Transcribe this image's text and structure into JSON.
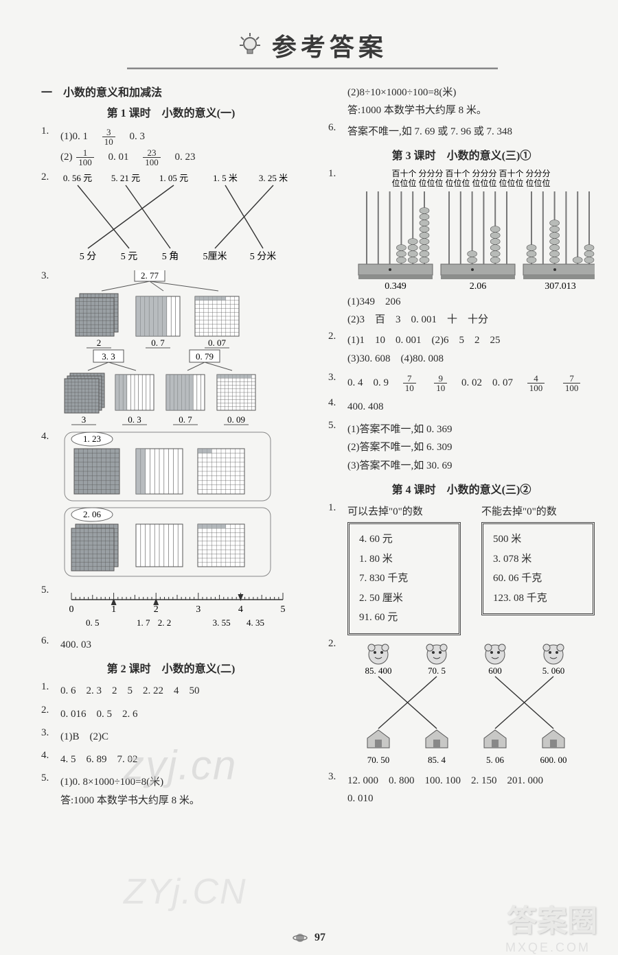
{
  "title": "参考答案",
  "page_number": "97",
  "watermarks": {
    "wm1": "zyj.cn",
    "wm2": "ZYj.CN",
    "wm3": "答案圈",
    "wm4": "MXQE.COM"
  },
  "left": {
    "chapter": "一　小数的意义和加减法",
    "lesson1": "第 1 课时　小数的意义(一)",
    "q1": {
      "num": "1.",
      "line1_pre": "(1)0. 1　",
      "frac1": {
        "n": "3",
        "d": "10"
      },
      "line1_post": "　0. 3",
      "line2_pre": "(2)",
      "frac2": {
        "n": "1",
        "d": "100"
      },
      "line2_mid": "　0. 01　",
      "frac3": {
        "n": "23",
        "d": "100"
      },
      "line2_post": "　0. 23"
    },
    "q2": {
      "num": "2.",
      "top": [
        "0. 56 元",
        "5. 21 元",
        "1. 05 元",
        "1. 5 米",
        "3. 25 米"
      ],
      "bottom": [
        "5 分",
        "5 元",
        "5 角",
        "5厘米",
        "5 分米"
      ],
      "edges": [
        [
          0,
          1
        ],
        [
          1,
          2
        ],
        [
          2,
          0
        ],
        [
          3,
          4
        ],
        [
          4,
          3
        ]
      ],
      "color": "#333",
      "line_w": 1.4
    },
    "q3": {
      "num": "3.",
      "row1_box": "2. 77",
      "row1_labels": [
        "2",
        "0. 7",
        "0. 07"
      ],
      "row2_box_left": "3. 3",
      "row2_box_right": "0. 79",
      "row2_labels": [
        "3",
        "0. 3",
        "0. 7",
        "0. 09"
      ],
      "block_fill": "#9aa0a4",
      "block_stroke": "#555",
      "hatch": "#888"
    },
    "q4": {
      "num": "4.",
      "labels": [
        "1. 23",
        "2. 06"
      ],
      "block_fill": "#9aa0a4",
      "block_stroke": "#555",
      "hatch": "#888"
    },
    "q5": {
      "num": "5.",
      "ticks": [
        0,
        1,
        2,
        3,
        4,
        5
      ],
      "arrows_up": [
        1,
        2
      ],
      "arrows_down": [
        4
      ],
      "labels": [
        {
          "x": 0.5,
          "t": "0. 5"
        },
        {
          "x": 1.7,
          "t": "1. 7"
        },
        {
          "x": 2.2,
          "t": "2. 2"
        },
        {
          "x": 3.55,
          "t": "3. 55"
        },
        {
          "x": 4.35,
          "t": "4. 35"
        }
      ],
      "color": "#333"
    },
    "q6": {
      "num": "6.",
      "text": "400. 03"
    },
    "lesson2": "第 2 课时　小数的意义(二)",
    "l2_q1": {
      "num": "1.",
      "text": "0. 6　2. 3　2　5　2. 22　4　50"
    },
    "l2_q2": {
      "num": "2.",
      "text": "0. 016　0. 5　2. 6"
    },
    "l2_q3": {
      "num": "3.",
      "text": "(1)B　(2)C"
    },
    "l2_q4": {
      "num": "4.",
      "text": "4. 5　6. 89　7. 02"
    },
    "l2_q5": {
      "num": "5.",
      "l1": "(1)0. 8×1000÷100=8(米)",
      "l2": "答:1000 本数学书大约厚 8 米。"
    }
  },
  "right": {
    "cont": {
      "l1": "(2)8÷10×1000÷100=8(米)",
      "l2": "答:1000 本数学书大约厚 8 米。"
    },
    "q6": {
      "num": "6.",
      "text": "答案不唯一,如 7. 69 或 7. 96 或 7. 348"
    },
    "lesson3": "第 3 课时　小数的意义(三)①",
    "abacus": {
      "num": "1.",
      "headers_top": [
        "",
        "十",
        "百",
        "千",
        "",
        "",
        "十",
        "百",
        "千",
        "",
        "",
        "十",
        "百",
        "千"
      ],
      "header_line1": "百十个 分分分 百十个 分分分 百十个 分分分",
      "header_line2": "位位位 位位位 位位位 位位位 位位位 位位位",
      "values": [
        "0.349",
        "2.06",
        "307.013"
      ],
      "rods": [
        [
          0,
          0,
          0,
          3,
          4,
          9
        ],
        [
          0,
          0,
          2,
          0,
          6,
          0
        ],
        [
          3,
          0,
          7,
          0,
          1,
          3
        ]
      ],
      "bead": "#b8bbb8",
      "rod": "#777",
      "base": "#a8aaa8",
      "base_dark": "#8c8e8c"
    },
    "l3_q1a": "(1)349　206",
    "l3_q1b": "(2)3　百　3　0. 001　十　十分",
    "l3_q2": {
      "num": "2.",
      "l1": "(1)1　10　0. 001　(2)6　5　2　25",
      "l2": "(3)30. 608　(4)80. 008"
    },
    "l3_q3": {
      "num": "3.",
      "pre": "0. 4　0. 9　",
      "f1": {
        "n": "7",
        "d": "10"
      },
      "m1": "　",
      "f2": {
        "n": "9",
        "d": "10"
      },
      "m2": "　0. 02　0. 07　",
      "f3": {
        "n": "4",
        "d": "100"
      },
      "m3": "　",
      "f4": {
        "n": "7",
        "d": "100"
      }
    },
    "l3_q4": {
      "num": "4.",
      "text": "400. 408"
    },
    "l3_q5": {
      "num": "5.",
      "l1": "(1)答案不唯一,如 0. 369",
      "l2": "(2)答案不唯一,如 6. 309",
      "l3": "(3)答案不唯一,如 30. 69"
    },
    "lesson4": "第 4 课时　小数的意义(三)②",
    "l4_q1": {
      "num": "1.",
      "h1": "可以去掉\"0\"的数",
      "h2": "不能去掉\"0\"的数",
      "left": [
        "4. 60 元",
        "1. 80 米",
        "7. 830 千克",
        "2. 50 厘米",
        "91. 60 元"
      ],
      "right": [
        "500 米",
        "3. 078 米",
        "60. 06 千克",
        "123. 08 千克"
      ]
    },
    "l4_q2": {
      "num": "2.",
      "top": [
        "85. 400",
        "70. 5",
        "600",
        "5. 060"
      ],
      "bottom": [
        "70. 50",
        "85. 4",
        "5. 06",
        "600. 00"
      ],
      "edges": [
        [
          0,
          1
        ],
        [
          1,
          0
        ],
        [
          2,
          3
        ],
        [
          3,
          2
        ]
      ],
      "color": "#333"
    },
    "l4_q3": {
      "num": "3.",
      "l1": "12. 000　0. 800　100. 100　2. 150　201. 000",
      "l2": "0. 010"
    }
  }
}
